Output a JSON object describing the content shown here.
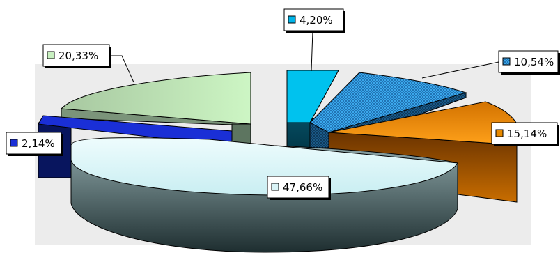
{
  "chart_data": {
    "type": "pie",
    "variant": "3d-exploded",
    "title": "",
    "legend": "none",
    "slices": [
      {
        "label": "4,20%",
        "value": 4.2,
        "color": "#00b4e8",
        "pattern": "solid"
      },
      {
        "label": "10,54%",
        "value": 10.54,
        "color": "#3aa6e8",
        "pattern": "dotted"
      },
      {
        "label": "15,14%",
        "value": 15.14,
        "color": "#e88a00",
        "pattern": "gradient"
      },
      {
        "label": "47,66%",
        "value": 47.66,
        "color": "#d9f4f7",
        "pattern": "gradient"
      },
      {
        "label": "2,14%",
        "value": 2.14,
        "color": "#1a2fd6",
        "pattern": "solid"
      },
      {
        "label": "20,33%",
        "value": 20.33,
        "color": "#c8f0c0",
        "pattern": "gradient"
      }
    ]
  }
}
